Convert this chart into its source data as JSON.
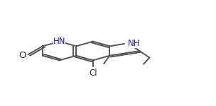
{
  "bg": "#ffffff",
  "lc": "#555555",
  "lw": 1.4,
  "dbo": 0.013,
  "figw": 3.04,
  "figh": 1.5,
  "dpi": 100,
  "label_hn": "HN",
  "label_nh": "NH",
  "label_o": "O",
  "label_cl": "Cl",
  "label_color_n": "#1a1acc",
  "label_color_dark": "#333333",
  "fs_main": 8.5,
  "fs_o": 9.5,
  "fs_cl": 8.5
}
